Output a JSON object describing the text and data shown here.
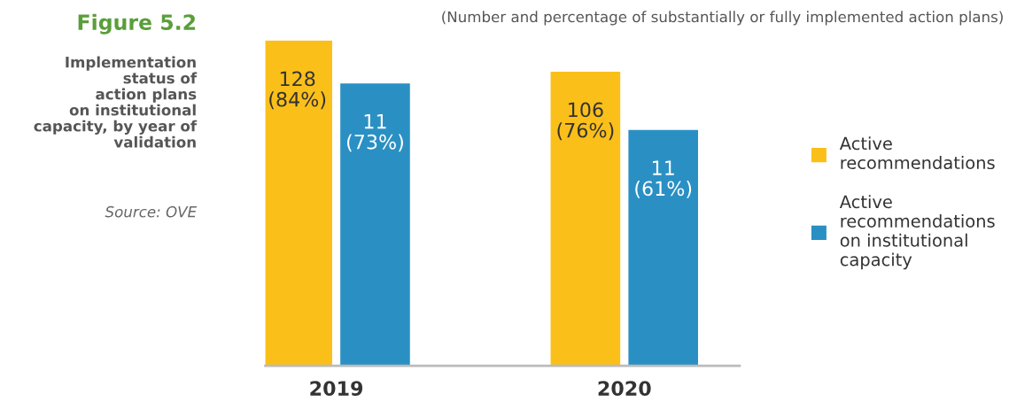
{
  "chart_data": {
    "type": "bar",
    "title": "Figure 5.2",
    "subtitle": "Implementation\nstatus of\naction plans\non institutional\ncapacity, by year of\nvalidation",
    "annotations": [
      "(Number and percentage of substantially or fully implemented action plans)",
      "Source: OVE"
    ],
    "categories": [
      "2019",
      "2020"
    ],
    "series": [
      {
        "name": "Active\nrecommendations",
        "color": "#fbbf1a",
        "values": [
          84,
          76
        ],
        "value_labels": [
          "128\n(84%)",
          "106\n(76%)"
        ]
      },
      {
        "name": "Active\nrecommendations\non institutional\ncapacity",
        "color": "#2a90c4",
        "values": [
          73,
          61
        ],
        "value_labels": [
          "11\n(73%)",
          "11\n(61%)"
        ]
      }
    ],
    "legend": "right",
    "grid": false,
    "tick_labels": "x"
  }
}
